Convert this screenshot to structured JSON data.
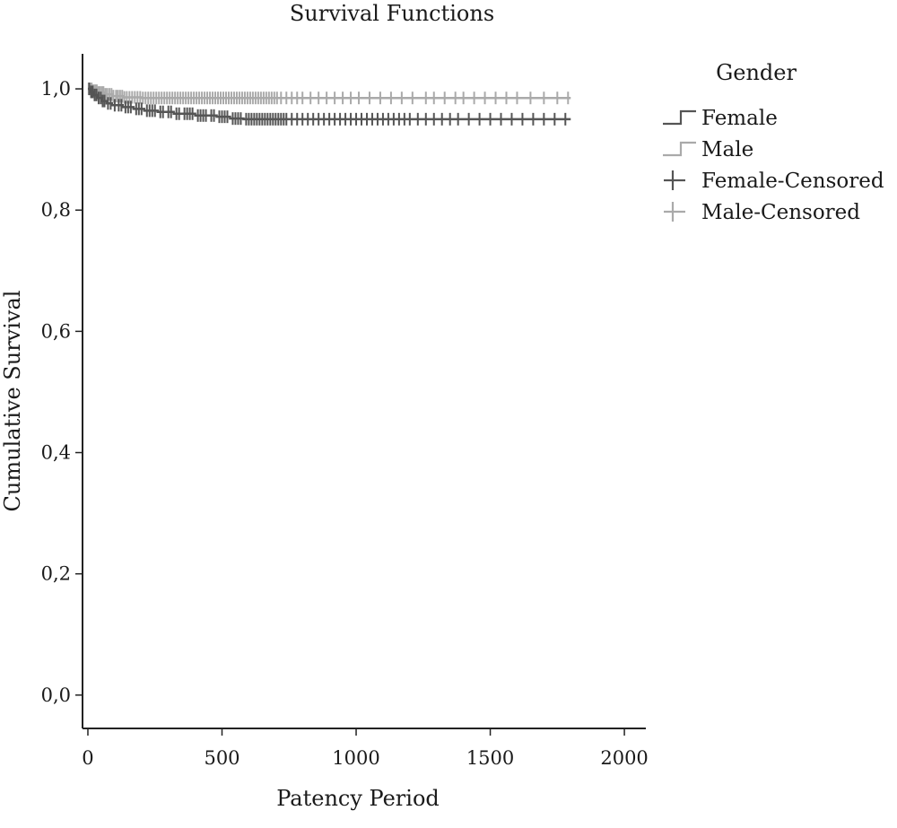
{
  "chart_data": {
    "type": "line",
    "title": "Survival Functions",
    "xlabel": "Patency Period",
    "ylabel": "Cumulative Survival",
    "xlim": [
      -20,
      2080
    ],
    "ylim": [
      -0.055,
      1.08
    ],
    "x_ticks": [
      0,
      500,
      1000,
      1500,
      2000
    ],
    "x_tick_labels": [
      "0",
      "500",
      "1000",
      "1500",
      "2000"
    ],
    "y_ticks": [
      0.0,
      0.2,
      0.4,
      0.6,
      0.8,
      1.0
    ],
    "y_tick_labels": [
      "0,0",
      "0,2",
      "0,4",
      "0,6",
      "0,8",
      "1,0"
    ],
    "grid": false,
    "legend": {
      "title": "Gender",
      "position": "right",
      "entries": [
        {
          "label": "Female",
          "kind": "line",
          "color": "#555555"
        },
        {
          "label": "Male",
          "kind": "line",
          "color": "#aaaaaa"
        },
        {
          "label": "Female-Censored",
          "kind": "censor",
          "color": "#555555"
        },
        {
          "label": "Male-Censored",
          "kind": "censor",
          "color": "#aaaaaa"
        }
      ]
    },
    "series": [
      {
        "name": "Female",
        "color": "#555555",
        "steps": [
          [
            0,
            1.0
          ],
          [
            10,
            0.995
          ],
          [
            20,
            0.99
          ],
          [
            35,
            0.985
          ],
          [
            50,
            0.98
          ],
          [
            70,
            0.976
          ],
          [
            90,
            0.973
          ],
          [
            130,
            0.97
          ],
          [
            170,
            0.967
          ],
          [
            210,
            0.964
          ],
          [
            260,
            0.962
          ],
          [
            320,
            0.959
          ],
          [
            400,
            0.956
          ],
          [
            480,
            0.954
          ],
          [
            530,
            0.951
          ],
          [
            580,
            0.95
          ],
          [
            1800,
            0.95
          ]
        ],
        "censored": [
          5,
          12,
          18,
          25,
          32,
          40,
          48,
          55,
          62,
          75,
          85,
          100,
          115,
          125,
          140,
          150,
          160,
          180,
          190,
          200,
          220,
          230,
          240,
          250,
          270,
          280,
          300,
          310,
          330,
          340,
          360,
          370,
          380,
          390,
          410,
          420,
          430,
          440,
          460,
          470,
          490,
          500,
          510,
          520,
          540,
          550,
          560,
          570,
          590,
          600,
          610,
          620,
          630,
          640,
          650,
          660,
          670,
          680,
          690,
          700,
          710,
          720,
          730,
          740,
          760,
          780,
          800,
          820,
          840,
          860,
          880,
          900,
          920,
          940,
          960,
          980,
          1000,
          1020,
          1040,
          1060,
          1080,
          1100,
          1120,
          1140,
          1160,
          1180,
          1200,
          1230,
          1260,
          1290,
          1320,
          1350,
          1380,
          1420,
          1460,
          1500,
          1540,
          1580,
          1620,
          1660,
          1700,
          1740,
          1780
        ]
      },
      {
        "name": "Male",
        "color": "#aaaaaa",
        "steps": [
          [
            0,
            1.0
          ],
          [
            15,
            0.997
          ],
          [
            35,
            0.994
          ],
          [
            60,
            0.991
          ],
          [
            90,
            0.988
          ],
          [
            130,
            0.986
          ],
          [
            200,
            0.985
          ],
          [
            1800,
            0.985
          ]
        ],
        "censored": [
          3,
          8,
          14,
          20,
          27,
          33,
          39,
          45,
          52,
          58,
          65,
          72,
          80,
          88,
          95,
          105,
          112,
          120,
          128,
          136,
          145,
          155,
          165,
          175,
          185,
          195,
          205,
          215,
          225,
          235,
          245,
          255,
          265,
          275,
          285,
          295,
          305,
          315,
          325,
          335,
          345,
          355,
          365,
          375,
          385,
          395,
          405,
          415,
          425,
          435,
          445,
          455,
          465,
          475,
          485,
          495,
          505,
          515,
          525,
          535,
          545,
          555,
          565,
          575,
          585,
          595,
          605,
          615,
          625,
          635,
          645,
          655,
          665,
          675,
          685,
          695,
          705,
          720,
          740,
          760,
          780,
          800,
          830,
          860,
          890,
          920,
          950,
          980,
          1010,
          1050,
          1090,
          1130,
          1170,
          1210,
          1260,
          1290,
          1330,
          1370,
          1400,
          1440,
          1480,
          1520,
          1560,
          1600,
          1650,
          1700,
          1750,
          1790
        ]
      }
    ]
  }
}
